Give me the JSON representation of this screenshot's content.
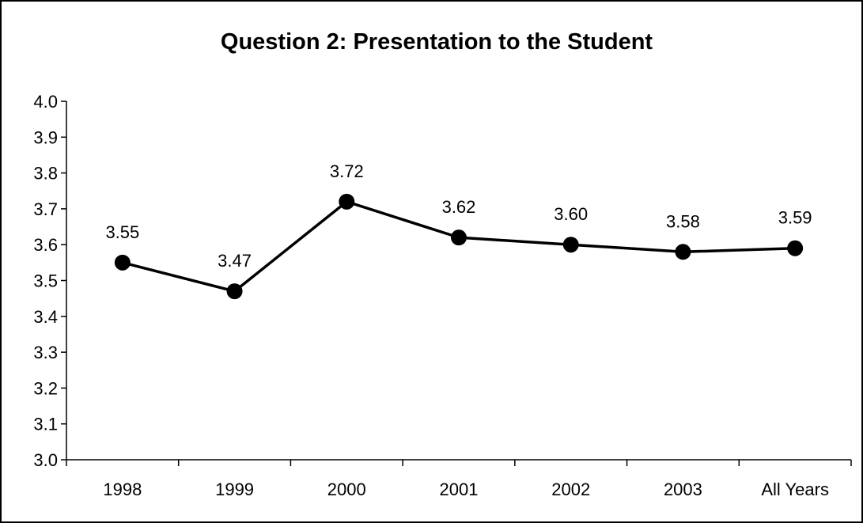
{
  "chart_data": {
    "type": "line",
    "title": "Question 2: Presentation to the Student",
    "xlabel": "",
    "ylabel": "",
    "categories": [
      "1998",
      "1999",
      "2000",
      "2001",
      "2002",
      "2003",
      "All Years"
    ],
    "series": [
      {
        "values": [
          3.55,
          3.47,
          3.72,
          3.62,
          3.6,
          3.58,
          3.59
        ],
        "data_labels": [
          "3.55",
          "3.47",
          "3.72",
          "3.62",
          "3.60",
          "3.58",
          "3.59"
        ],
        "color": "#000000",
        "marker": "circle"
      }
    ],
    "ylim": [
      3.0,
      4.0
    ],
    "yticks": [
      "3.0",
      "3.1",
      "3.2",
      "3.3",
      "3.4",
      "3.5",
      "3.6",
      "3.7",
      "3.8",
      "3.9",
      "4.0"
    ],
    "grid": false,
    "legend": "none"
  }
}
